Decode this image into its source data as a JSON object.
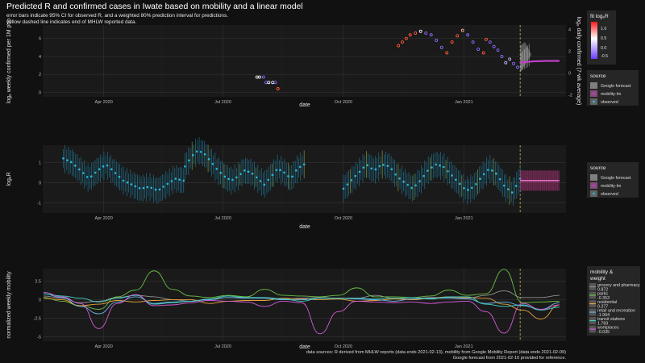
{
  "header": {
    "title": "Predicted R and confirmed cases in Iwate based on mobility and a linear model",
    "subtitle1": "error bars indicate 95% CI for observed R, and a weighted 80% prediction interval for predictions.",
    "subtitle2": "yellow dashed line indicates end of MHLW reported data."
  },
  "footer": {
    "line1": "data sources: R derived from MHLW reports (data ends 2021-02-13), mobility from Google Mobility Report (data ends 2021-02-09)",
    "line2": "Google forecast from 2021-02-10 provided for reference."
  },
  "colors": {
    "background": "#111111",
    "panel": "#1a1a1a",
    "grid": "#2e2e2e",
    "vline": "#c8b44a",
    "observed": "#29b6d8",
    "forecast": "#c040c8",
    "model_ribbon": "#e0409a"
  },
  "chart_data": [
    {
      "type": "scatter",
      "id": "cases",
      "xlabel": "date",
      "ylabel": "logₑ weekly confirmed per 1M pop",
      "ylabel2": "logₑ daily confirmed (7-wk average)",
      "x_ticks": [
        "Apr 2020",
        "Jul 2020",
        "Oct 2020",
        "Jan 2021"
      ],
      "ylim": [
        -0.5,
        7.5
      ],
      "y_ticks": [
        0,
        2,
        4,
        6
      ],
      "y2lim": [
        -2.2,
        4.4
      ],
      "y2_ticks": [
        -2,
        0,
        2,
        4
      ],
      "vline_date": "2021-02-13",
      "points": [
        {
          "date": "2020-07-27",
          "y": 1.7
        },
        {
          "date": "2020-07-29",
          "y": 1.7
        },
        {
          "date": "2020-08-01",
          "y": 1.7
        },
        {
          "date": "2020-08-03",
          "y": 1.1
        },
        {
          "date": "2020-08-05",
          "y": 1.1
        },
        {
          "date": "2020-08-08",
          "y": 1.1
        },
        {
          "date": "2020-08-10",
          "y": 1.1
        },
        {
          "date": "2020-08-12",
          "y": 0.4
        },
        {
          "date": "2020-11-12",
          "y": 5.2
        },
        {
          "date": "2020-11-15",
          "y": 5.6
        },
        {
          "date": "2020-11-18",
          "y": 6.0
        },
        {
          "date": "2020-11-21",
          "y": 6.4
        },
        {
          "date": "2020-11-25",
          "y": 6.6
        },
        {
          "date": "2020-11-29",
          "y": 6.8
        },
        {
          "date": "2020-12-03",
          "y": 6.6
        },
        {
          "date": "2020-12-07",
          "y": 6.4
        },
        {
          "date": "2020-12-11",
          "y": 5.8
        },
        {
          "date": "2020-12-15",
          "y": 5.0
        },
        {
          "date": "2020-12-19",
          "y": 4.4
        },
        {
          "date": "2020-12-23",
          "y": 5.6
        },
        {
          "date": "2020-12-27",
          "y": 6.3
        },
        {
          "date": "2020-12-31",
          "y": 6.9
        },
        {
          "date": "2021-01-04",
          "y": 6.4
        },
        {
          "date": "2021-01-08",
          "y": 5.6
        },
        {
          "date": "2021-01-12",
          "y": 4.8
        },
        {
          "date": "2021-01-16",
          "y": 4.4
        },
        {
          "date": "2021-01-18",
          "y": 5.9
        },
        {
          "date": "2021-01-21",
          "y": 5.6
        },
        {
          "date": "2021-01-24",
          "y": 5.1
        },
        {
          "date": "2021-01-27",
          "y": 4.7
        },
        {
          "date": "2021-01-30",
          "y": 4.0
        },
        {
          "date": "2021-02-02",
          "y": 3.3
        },
        {
          "date": "2021-02-05",
          "y": 3.7
        },
        {
          "date": "2021-02-08",
          "y": 3.2
        },
        {
          "date": "2021-02-11",
          "y": 2.8
        }
      ],
      "forecast_start": "2021-02-13",
      "forecast_end": "2021-03-15",
      "forecast_values": [
        3.3,
        3.45,
        3.5,
        3.5
      ]
    },
    {
      "type": "scatter",
      "id": "r",
      "xlabel": "date",
      "ylabel": "logₑR",
      "x_ticks": [
        "Apr 2020",
        "Jul 2020",
        "Oct 2020",
        "Jan 2021"
      ],
      "ylim": [
        -1.5,
        1.85
      ],
      "y_ticks": [
        -1,
        0,
        1
      ],
      "vline_date": "2021-02-13",
      "segments": [
        {
          "start": "2020-03-01",
          "end": "2020-06-01",
          "values": [
            1.2,
            1.0,
            0.6,
            0.2,
            0.6,
            0.9,
            0.5,
            0.1,
            -0.1,
            -0.3,
            -0.2,
            -0.4,
            -0.1,
            0.2,
            0.1
          ]
        },
        {
          "start": "2020-06-02",
          "end": "2020-09-01",
          "values": [
            0.8,
            1.3,
            1.6,
            1.4,
            1.0,
            0.6,
            0.3,
            0.1,
            0.3,
            0.6,
            0.5,
            0.2,
            -0.1,
            0.3,
            0.7,
            0.5,
            0.2,
            0.7,
            0.9
          ]
        },
        {
          "start": "2020-10-01",
          "end": "2021-02-13",
          "values": [
            -0.3,
            0.1,
            0.5,
            0.9,
            0.6,
            0.9,
            0.8,
            0.3,
            0.0,
            -0.3,
            0.1,
            0.6,
            0.9,
            0.8,
            0.4,
            0.0,
            -0.4,
            -0.2,
            0.3,
            0.7,
            0.4,
            -0.2,
            -0.5,
            0.2
          ]
        }
      ],
      "forecast_start": "2021-02-13",
      "forecast_end": "2021-03-15",
      "forecast_value": 0.1
    },
    {
      "type": "line",
      "id": "mobility",
      "xlabel": "date",
      "ylabel": "normalized weekly mobility",
      "x_ticks": [
        "Apr 2020",
        "Jul 2020",
        "Oct 2020",
        "Jan 2021"
      ],
      "ylim": [
        -5.6,
        4.2
      ],
      "y_ticks": [
        -5.0,
        -2.5,
        0.0,
        2.5
      ],
      "vline_date": "2021-02-13",
      "x_start": "2020-02-15",
      "x_end": "2021-03-15",
      "series": [
        {
          "name": "grocery and pharmacy",
          "weight": "0.872",
          "color": "#8f8f8f",
          "values": [
            0.5,
            0.2,
            -0.4,
            -0.2,
            0.3,
            0.6,
            0.4,
            0.0,
            -0.2,
            0.1,
            0.3,
            0.3,
            0.2,
            0.1,
            0.2,
            0.3,
            0.2,
            0.2,
            0.6,
            0.2,
            0.1,
            0.3,
            0.3,
            0.2,
            0.6,
            1.2,
            0.3,
            0.3,
            0.6
          ]
        },
        {
          "name": "parks",
          "weight": "-0.353",
          "color": "#6abe45",
          "values": [
            0.3,
            -0.2,
            -0.8,
            -1.3,
            0.4,
            1.3,
            3.9,
            1.4,
            0.5,
            0.3,
            0.6,
            0.4,
            1.4,
            0.6,
            0.5,
            0.4,
            0.6,
            1.6,
            0.4,
            0.4,
            0.3,
            0.5,
            1.3,
            0.6,
            0.8,
            4.1,
            -0.4,
            -0.3,
            -0.2
          ]
        },
        {
          "name": "residential",
          "weight": "0.377",
          "color": "#e6a23a",
          "values": [
            0.2,
            0.0,
            -0.8,
            -0.6,
            -0.1,
            -0.3,
            -0.1,
            0.0,
            0.0,
            -0.5,
            -0.2,
            -0.1,
            -0.1,
            0.2,
            0.1,
            0.0,
            0.1,
            -0.2,
            -0.1,
            0.1,
            0.0,
            0.2,
            0.4,
            0.3,
            0.2,
            -0.6,
            -1.4,
            -2.6,
            -0.7
          ]
        },
        {
          "name": "retail and recreation",
          "weight": "-1.994",
          "color": "#6ab4e0",
          "values": [
            0.8,
            0.3,
            -0.9,
            -1.9,
            -0.3,
            0.4,
            -0.5,
            -0.3,
            -0.2,
            0.0,
            0.3,
            0.2,
            0.2,
            0.0,
            0.0,
            0.2,
            0.2,
            0.1,
            0.0,
            -0.2,
            0.1,
            0.2,
            0.2,
            0.1,
            -0.5,
            -0.3,
            -0.8,
            -1.3,
            -0.4
          ]
        },
        {
          "name": "transit stations",
          "weight": "1.769",
          "color": "#3fd1c2",
          "values": [
            0.8,
            0.5,
            0.2,
            -0.3,
            0.2,
            0.6,
            -0.6,
            -0.4,
            -0.2,
            0.1,
            0.5,
            0.3,
            0.3,
            0.1,
            -0.2,
            0.2,
            0.2,
            0.2,
            0.1,
            0.2,
            0.3,
            0.1,
            0.4,
            0.4,
            -0.6,
            -0.9,
            -0.7,
            -1.4,
            -1.0
          ]
        },
        {
          "name": "workplaces",
          "weight": "-0.035",
          "color": "#d45ad8",
          "values": [
            1.0,
            0.4,
            -0.5,
            -3.9,
            -0.5,
            0.7,
            -0.8,
            -0.7,
            -0.4,
            -0.1,
            -0.2,
            -0.3,
            -0.9,
            -0.2,
            -0.4,
            -4.6,
            -1.6,
            -0.2,
            -0.3,
            -0.4,
            -0.3,
            -0.5,
            -0.3,
            -0.2,
            -1.6,
            -4.5,
            -0.5,
            -1.3,
            -0.7
          ]
        }
      ]
    }
  ],
  "legends": {
    "fit": {
      "title": "fit logₑR",
      "ticks": [
        "1.0",
        "0.5",
        "0.0",
        "-0.5"
      ]
    },
    "source_cases": {
      "title": "source",
      "items": [
        "Google forecast",
        "mobility-lm",
        "observed"
      ]
    },
    "source_r": {
      "title": "source",
      "items": [
        "Google forecast",
        "mobility-lm",
        "observed"
      ]
    },
    "mobility": {
      "title": "mobility &",
      "title2": "weight"
    }
  }
}
